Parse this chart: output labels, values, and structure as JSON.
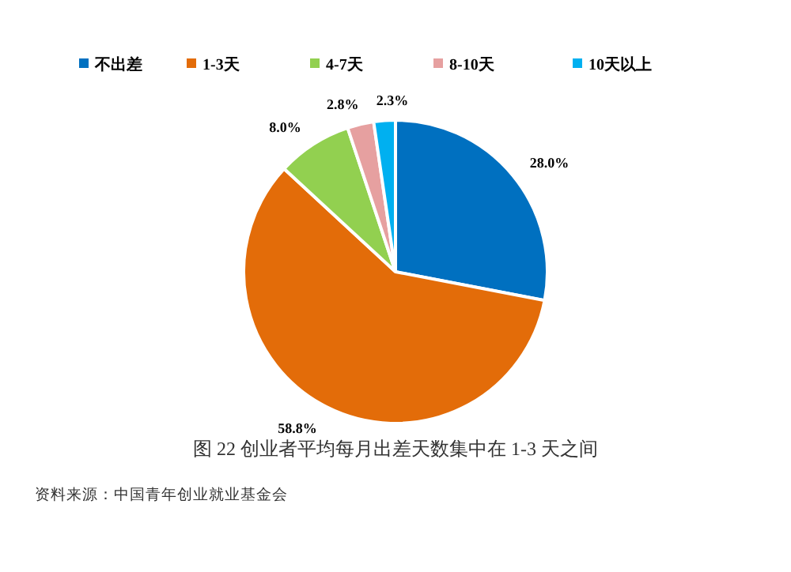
{
  "chart_data": {
    "type": "pie",
    "title": "图 22 创业者平均每月出差天数集中在 1-3 天之间",
    "categories": [
      "不出差",
      "1-3天",
      "4-7天",
      "8-10天",
      "10天以上"
    ],
    "values": [
      28.0,
      58.8,
      8.0,
      2.8,
      2.3
    ],
    "colors": [
      "#0070c0",
      "#e36c09",
      "#92d050",
      "#e6a0a0",
      "#00b0f0"
    ],
    "value_labels": [
      "28.0%",
      "58.8%",
      "8.0%",
      "2.8%",
      "2.3%"
    ],
    "legend": "top",
    "annotations": [
      "资料来源：中国青年创业就业基金会"
    ]
  }
}
